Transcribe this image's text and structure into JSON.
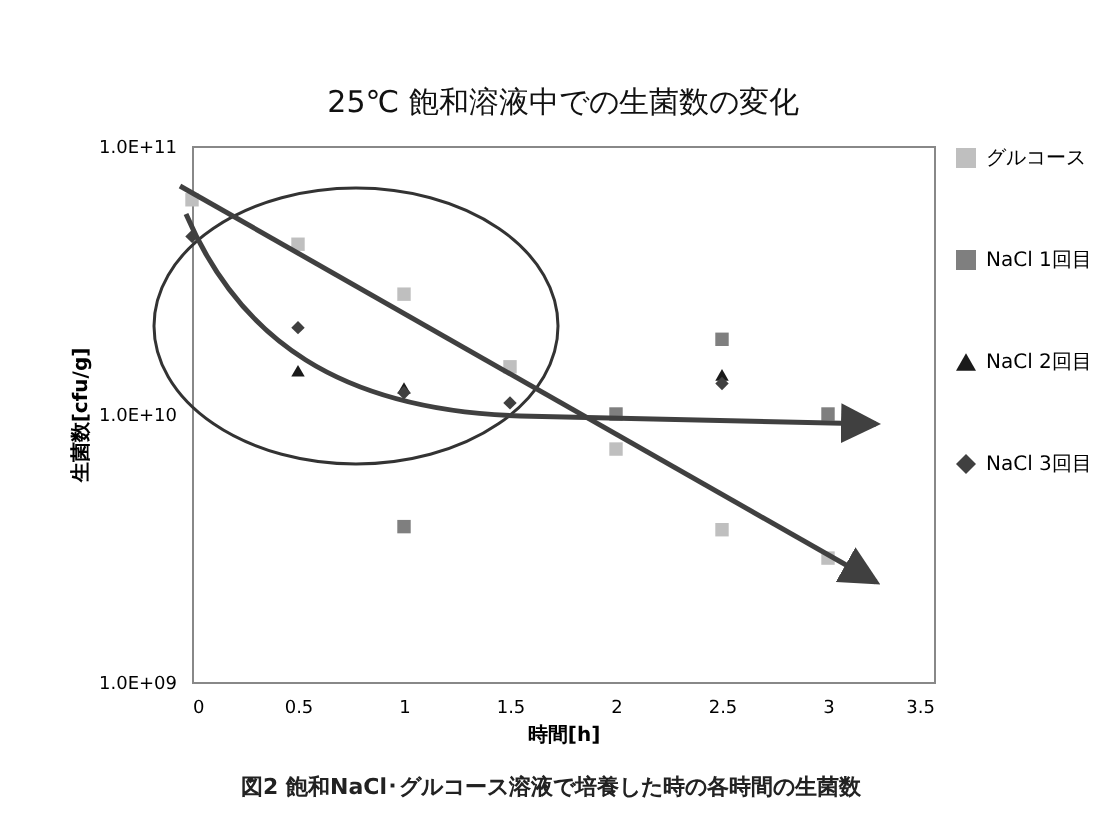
{
  "chart_data": {
    "type": "scatter",
    "title": "25℃  飽和溶液中での生菌数の変化",
    "xlabel": "時間[h]",
    "ylabel": "生菌数[cfu/g]",
    "annotations": [
      "図2  飽和NaCl･グルコース溶液で培養した時の各時間の生菌数"
    ],
    "x": [
      0,
      0.5,
      1,
      1.5,
      2,
      2.5,
      3
    ],
    "series": [
      {
        "name": "グルコース",
        "color": "#bfbfbf",
        "marker": "square",
        "values": [
          63000000000.0,
          43000000000.0,
          28000000000.0,
          15000000000.0,
          7400000000.0,
          3700000000.0,
          2900000000.0
        ]
      },
      {
        "name": "NaCl 1回目",
        "color": "#7f7f7f",
        "marker": "square",
        "values": [
          null,
          null,
          3800000000.0,
          null,
          10000000000.0,
          19000000000.0,
          10000000000.0
        ]
      },
      {
        "name": "NaCl 2回目",
        "color": "#1a1a1a",
        "marker": "triangle",
        "values": [
          null,
          14500000000.0,
          12500000000.0,
          null,
          null,
          14000000000.0,
          null
        ]
      },
      {
        "name": "NaCl 3回目",
        "color": "#404040",
        "marker": "diamond",
        "values": [
          46000000000.0,
          21000000000.0,
          12000000000.0,
          11000000000.0,
          null,
          13000000000.0,
          null
        ]
      }
    ],
    "log": "y",
    "xlim": [
      0,
      3.5
    ],
    "ylim": [
      1000000000.0,
      100000000000.0
    ],
    "xticks": [
      0,
      0.5,
      1,
      1.5,
      2,
      2.5,
      3,
      3.5
    ],
    "yticks": [
      {
        "value": 1000000000.0,
        "label": "1.0E+09"
      },
      {
        "value": 10000000000.0,
        "label": "1.0E+10"
      },
      {
        "value": 100000000000.0,
        "label": "1.0E+11"
      }
    ],
    "grid": false,
    "legend": "right"
  }
}
